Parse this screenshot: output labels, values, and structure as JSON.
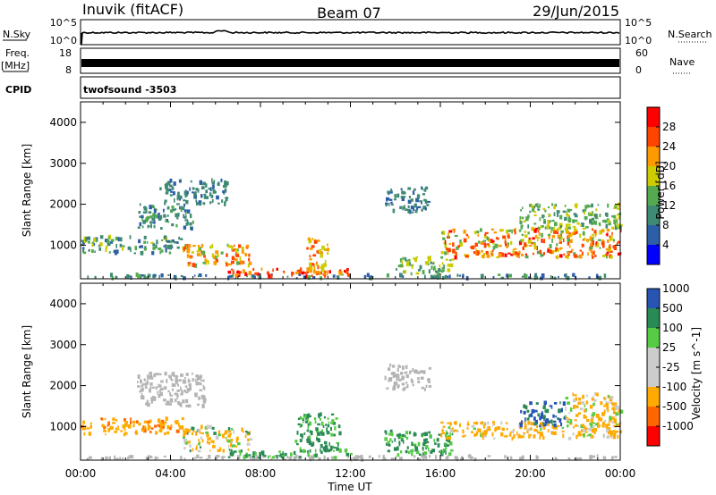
{
  "header": {
    "station": "Inuvik (fitACF)",
    "beam": "Beam 07",
    "date": "29/Jun/2015"
  },
  "top_panels": {
    "nsky_label": "N.Sky",
    "nsky_ticks": [
      "10^5",
      "10^0"
    ],
    "nsearch_label": "N.Search",
    "nsearch_ticks": [
      "10^5",
      "10^0"
    ],
    "freq_label": "Freq.",
    "freq_unit": "[MHz]",
    "freq_ticks": [
      "18",
      "8"
    ],
    "nave_label": "Nave",
    "nave_ticks": [
      "60",
      "0"
    ],
    "cpid_label": "CPID",
    "cpid_value": "twofsound -3503"
  },
  "colors": {
    "power": [
      "#0000ff",
      "#2c5fa7",
      "#3f8a74",
      "#55aa50",
      "#cccc00",
      "#ff9900",
      "#ff4400",
      "#ff0000"
    ],
    "velocity": [
      "#ff0000",
      "#ff6600",
      "#ffaa00",
      "#cccccc",
      "#cccccc",
      "#55cc44",
      "#2a8a55",
      "#2855b4"
    ],
    "ground_scatter": "#b4b4b4"
  },
  "chart_data": [
    {
      "type": "heatmap",
      "title": "",
      "xlabel": "Time UT",
      "ylabel": "Slant Range [km]",
      "x_tick_labels": [
        "00:00",
        "04:00",
        "08:00",
        "12:00",
        "16:00",
        "20:00",
        "00:00"
      ],
      "xlim": [
        0,
        24
      ],
      "ylim": [
        180,
        4500
      ],
      "y_ticks": [
        1000,
        2000,
        3000,
        4000
      ],
      "colorbar": {
        "label": "Power [dB]",
        "ticks": [
          4,
          8,
          12,
          16,
          20,
          24,
          28
        ],
        "range": [
          0,
          32
        ]
      },
      "scatter_regions": [
        {
          "t0": 0.0,
          "t1": 24.0,
          "r0": 190,
          "r1": 280,
          "v0": 4,
          "v1": 14
        },
        {
          "t0": 6.5,
          "t1": 12.0,
          "r0": 240,
          "r1": 420,
          "v0": 22,
          "v1": 30
        },
        {
          "t0": 0.0,
          "t1": 4.5,
          "r0": 800,
          "r1": 1200,
          "v0": 6,
          "v1": 18
        },
        {
          "t0": 2.5,
          "t1": 5.0,
          "r0": 1400,
          "r1": 2000,
          "v0": 6,
          "v1": 14
        },
        {
          "t0": 4.5,
          "t1": 7.5,
          "r0": 500,
          "r1": 1000,
          "v0": 14,
          "v1": 28
        },
        {
          "t0": 3.5,
          "t1": 6.5,
          "r0": 2000,
          "r1": 2600,
          "v0": 6,
          "v1": 12
        },
        {
          "t0": 10.0,
          "t1": 11.0,
          "r0": 300,
          "r1": 1200,
          "v0": 16,
          "v1": 28
        },
        {
          "t0": 14.0,
          "t1": 16.5,
          "r0": 300,
          "r1": 700,
          "v0": 10,
          "v1": 20
        },
        {
          "t0": 13.5,
          "t1": 15.5,
          "r0": 1800,
          "r1": 2400,
          "v0": 6,
          "v1": 12
        },
        {
          "t0": 16.0,
          "t1": 24.0,
          "r0": 700,
          "r1": 1400,
          "v0": 14,
          "v1": 30
        },
        {
          "t0": 19.5,
          "t1": 24.0,
          "r0": 1400,
          "r1": 2000,
          "v0": 10,
          "v1": 18
        }
      ]
    },
    {
      "type": "heatmap",
      "title": "",
      "xlabel": "Time UT",
      "ylabel": "Slant Range [km]",
      "x_tick_labels": [
        "00:00",
        "04:00",
        "08:00",
        "12:00",
        "16:00",
        "20:00",
        "00:00"
      ],
      "xlim": [
        0,
        24
      ],
      "ylim": [
        180,
        4500
      ],
      "y_ticks": [
        1000,
        2000,
        3000,
        4000
      ],
      "colorbar": {
        "label": "Velocity [m s^-1]",
        "ticks": [
          -1000,
          -500,
          -100,
          -25,
          25,
          100,
          500,
          1000
        ],
        "range": [
          -1200,
          1200
        ]
      },
      "scatter_regions": [
        {
          "t0": 0.0,
          "t1": 24.0,
          "r0": 190,
          "r1": 280,
          "v0": -20,
          "v1": 20,
          "ground": true
        },
        {
          "t0": 6.5,
          "t1": 12.0,
          "r0": 240,
          "r1": 420,
          "v0": 50,
          "v1": 200
        },
        {
          "t0": 0.0,
          "t1": 4.5,
          "r0": 800,
          "r1": 1200,
          "v0": -600,
          "v1": -150
        },
        {
          "t0": 2.5,
          "t1": 5.5,
          "r0": 1500,
          "r1": 2300,
          "v0": -20,
          "v1": 20,
          "ground": true
        },
        {
          "t0": 4.5,
          "t1": 7.5,
          "r0": 400,
          "r1": 1000,
          "v0": -400,
          "v1": 150
        },
        {
          "t0": 9.5,
          "t1": 11.5,
          "r0": 400,
          "r1": 1300,
          "v0": 30,
          "v1": 300
        },
        {
          "t0": 13.5,
          "t1": 16.5,
          "r0": 300,
          "r1": 900,
          "v0": 30,
          "v1": 200
        },
        {
          "t0": 13.5,
          "t1": 15.5,
          "r0": 1900,
          "r1": 2500,
          "v0": -20,
          "v1": 20,
          "ground": true
        },
        {
          "t0": 16.0,
          "t1": 24.0,
          "r0": 700,
          "r1": 1100,
          "v0": -500,
          "v1": 60
        },
        {
          "t0": 19.5,
          "t1": 21.5,
          "r0": 1000,
          "r1": 1600,
          "v0": 300,
          "v1": 1100
        },
        {
          "t0": 21.5,
          "t1": 24.0,
          "r0": 1000,
          "r1": 1800,
          "v0": -300,
          "v1": 100
        }
      ]
    }
  ]
}
